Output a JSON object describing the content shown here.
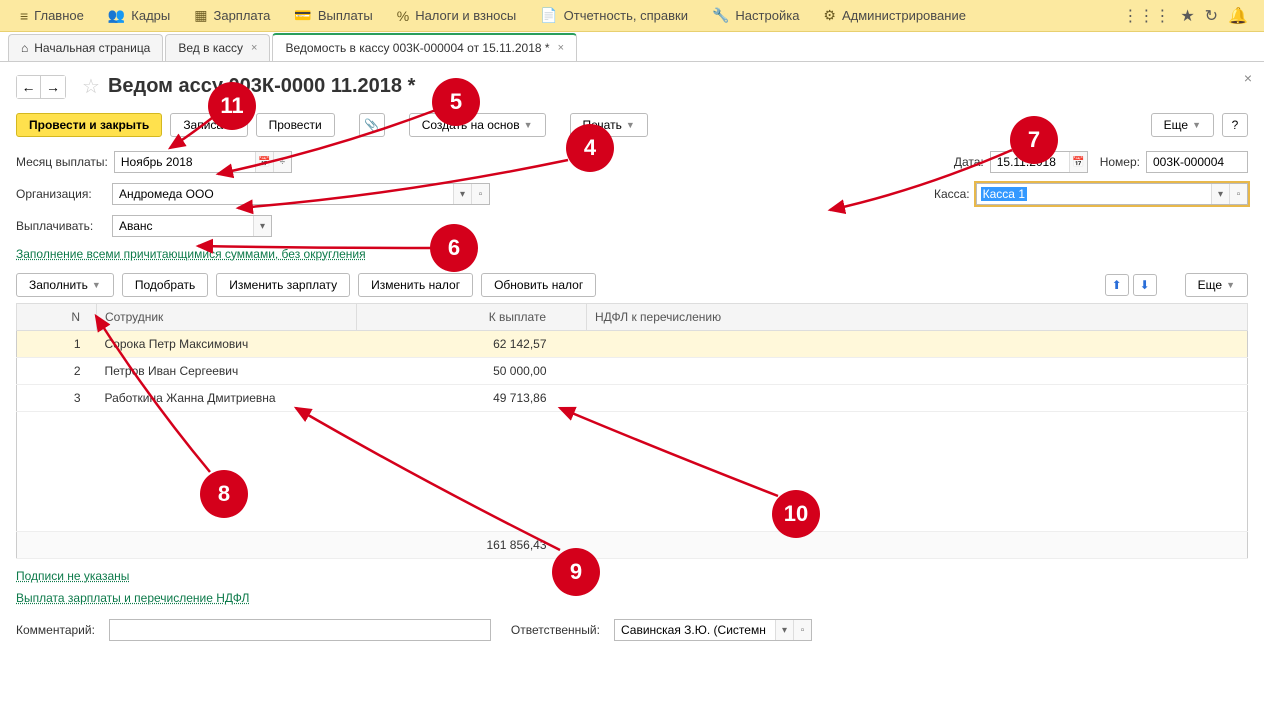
{
  "menubar": {
    "items": [
      {
        "icon": "≡",
        "label": "Главное"
      },
      {
        "icon": "👥",
        "label": "Кадры"
      },
      {
        "icon": "▦",
        "label": "Зарплата"
      },
      {
        "icon": "💳",
        "label": "Выплаты"
      },
      {
        "icon": "%",
        "label": "Налоги и взносы"
      },
      {
        "icon": "📄",
        "label": "Отчетность, справки"
      },
      {
        "icon": "🔧",
        "label": "Настройка"
      },
      {
        "icon": "⚙",
        "label": "Администрирование"
      }
    ]
  },
  "tabs": {
    "home": "Начальная страница",
    "t1": "Вед            в кассу",
    "t2": "Ведомость в кассу 003К-000004 от 15.11.2018 *"
  },
  "page_title": "Ведом            ассу 003К-0000            11.2018 *",
  "toolbar": {
    "submit_close": "Провести и закрыть",
    "save": "Записать",
    "submit": "Провести",
    "create_based": "Создать на основ",
    "print": "Печать",
    "more": "Еще"
  },
  "form": {
    "month_label": "Месяц выплаты:",
    "month_value": "Ноябрь 2018",
    "org_label": "Организация:",
    "org_value": "Андромеда ООО",
    "pay_label": "Выплачивать:",
    "pay_value": "Аванс",
    "date_label": "Дата:",
    "date_value": "15.11.2018",
    "number_label": "Номер:",
    "number_value": "003К-000004",
    "cash_label": "Касса:",
    "cash_value": "Касса 1",
    "fill_link": "Заполнение всеми причитающимися суммами, без округления"
  },
  "table_toolbar": {
    "fill": "Заполнить",
    "pick": "Подобрать",
    "change_salary": "Изменить зарплату",
    "change_tax": "Изменить налог",
    "update_tax": "Обновить налог",
    "more": "Еще"
  },
  "table": {
    "columns": {
      "n": "N",
      "employee": "Сотрудник",
      "pay": "К выплате",
      "ndfl": "НДФЛ к перечислению"
    },
    "rows": [
      {
        "n": "1",
        "employee": "Сорока Петр Максимович",
        "pay": "62 142,57"
      },
      {
        "n": "2",
        "employee": "Петров Иван Сергеевич",
        "pay": "50 000,00"
      },
      {
        "n": "3",
        "employee": "Работкина Жанна Дмитриевна",
        "pay": "49 713,86"
      }
    ],
    "total": "161 856,43"
  },
  "footer": {
    "sign_link": "Подписи не указаны",
    "pay_link": "Выплата зарплаты и перечисление НДФЛ",
    "comment_label": "Комментарий:",
    "resp_label": "Ответственный:",
    "resp_value": "Савинская З.Ю. (Системн"
  },
  "badges": {
    "b4": "4",
    "b5": "5",
    "b6": "6",
    "b7": "7",
    "b8": "8",
    "b9": "9",
    "b10": "10",
    "b11": "11"
  },
  "colors": {
    "badge": "#d4001b",
    "arrow": "#d4001b",
    "menubar_bg": "#fce9a0",
    "primary_btn": "#ffe14d",
    "link": "#0d7a4a",
    "highlight": "#e8b84a"
  }
}
